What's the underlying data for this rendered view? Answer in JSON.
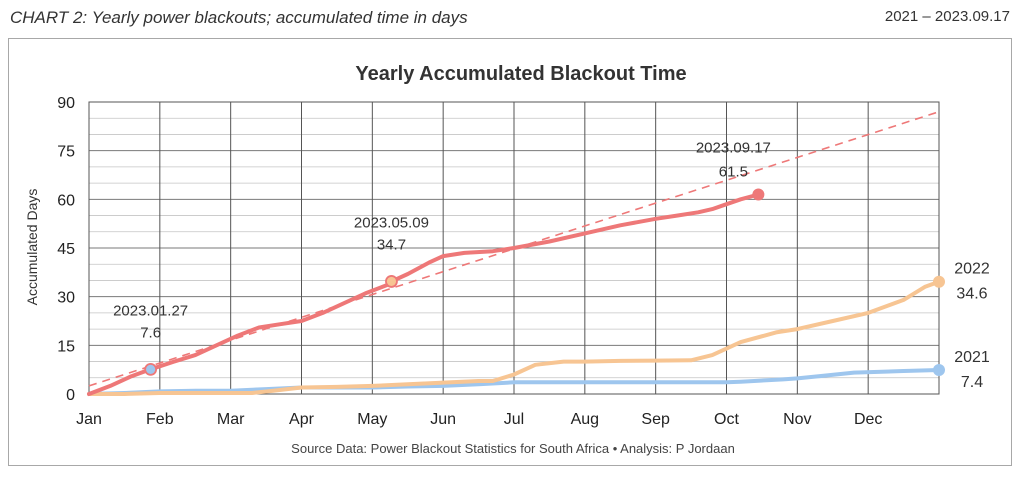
{
  "header": {
    "left": "CHART 2:  Yearly power blackouts; accumulated time in days",
    "right": "2021 – 2023.09.17"
  },
  "chart_data": {
    "type": "line",
    "title": "Yearly Accumulated Blackout Time",
    "xlabel": "",
    "ylabel": "Accumulated Days",
    "x_categories": [
      "Jan",
      "Feb",
      "Mar",
      "Apr",
      "May",
      "Jun",
      "Jul",
      "Aug",
      "Sep",
      "Oct",
      "Nov",
      "Dec"
    ],
    "x_unit": "month",
    "xlim": [
      0,
      12
    ],
    "ylim": [
      0,
      90
    ],
    "y_ticks": [
      0,
      15,
      30,
      45,
      60,
      75,
      90
    ],
    "grid": true,
    "source": "Source Data: Power Blackout Statistics for South Africa  •  Analysis: P Jordaan",
    "series": [
      {
        "name": "2021",
        "color": "#9ec6ee",
        "x": [
          0,
          0.5,
          1.0,
          1.5,
          2.0,
          2.5,
          3.0,
          3.5,
          4.0,
          4.5,
          5.0,
          5.5,
          6.0,
          6.5,
          7.0,
          7.5,
          8.0,
          8.5,
          9.0,
          9.2,
          9.8,
          10.0,
          10.3,
          10.8,
          11.5,
          12.0
        ],
        "y": [
          0,
          0.3,
          0.8,
          1.0,
          1.0,
          1.5,
          2.0,
          2.0,
          2.0,
          2.3,
          2.5,
          3.0,
          3.6,
          3.6,
          3.6,
          3.6,
          3.6,
          3.6,
          3.6,
          3.8,
          4.5,
          4.8,
          5.5,
          6.6,
          7.1,
          7.4
        ]
      },
      {
        "name": "2022",
        "color": "#f7c593",
        "x": [
          0,
          0.5,
          1.0,
          1.5,
          2.0,
          2.3,
          2.6,
          3.0,
          3.5,
          4.0,
          4.5,
          5.0,
          5.5,
          5.7,
          6.0,
          6.3,
          6.7,
          7.0,
          7.5,
          8.0,
          8.5,
          8.8,
          9.2,
          9.7,
          10.0,
          10.5,
          11.0,
          11.5,
          11.8,
          12.0
        ],
        "y": [
          0,
          0,
          0.3,
          0.3,
          0.3,
          0.3,
          1.0,
          2.0,
          2.2,
          2.5,
          3.0,
          3.5,
          4.0,
          4.0,
          6.0,
          9.0,
          10.0,
          10.0,
          10.2,
          10.3,
          10.4,
          12.0,
          16.0,
          19.0,
          20.0,
          22.5,
          25.0,
          29.0,
          33.0,
          34.6
        ]
      },
      {
        "name": "2023",
        "color": "#ee7878",
        "x": [
          0,
          0.3,
          0.6,
          0.87,
          1.2,
          1.5,
          1.8,
          2.1,
          2.4,
          2.7,
          3.0,
          3.3,
          3.6,
          3.9,
          4.2,
          4.27,
          4.5,
          4.8,
          5.0,
          5.3,
          5.7,
          6.0,
          6.5,
          7.0,
          7.5,
          8.0,
          8.3,
          8.6,
          8.8,
          9.0,
          9.2,
          9.45
        ],
        "y": [
          0,
          2.5,
          5.5,
          7.6,
          10.0,
          12.0,
          15.0,
          18.0,
          20.5,
          21.5,
          22.5,
          25.0,
          28.0,
          31.0,
          33.5,
          34.7,
          37.0,
          40.5,
          42.5,
          43.5,
          44.0,
          45.0,
          47.0,
          49.5,
          52.0,
          54.0,
          55.0,
          56.0,
          57.0,
          58.5,
          60.0,
          61.5
        ]
      }
    ],
    "trendline": {
      "series": "2023",
      "color": "#ee7878",
      "style": "dashed",
      "x": [
        0,
        12
      ],
      "y": [
        2.5,
        87.0
      ]
    },
    "annotations": [
      {
        "date": "2023.01.27",
        "value": "7.6",
        "x": 0.87,
        "y": 7.6,
        "color": "#9ec6ee"
      },
      {
        "date": "2023.05.09",
        "value": "34.7",
        "x": 4.27,
        "y": 34.7,
        "color": "#f7c593"
      },
      {
        "date": "2023.09.17",
        "value": "61.5",
        "x": 9.45,
        "y": 61.5,
        "color": "#ee7878"
      }
    ],
    "end_labels": [
      {
        "year": "2022",
        "value": "34.6",
        "x": 12.0,
        "y": 34.6,
        "color": "#f7c593"
      },
      {
        "year": "2021",
        "value": "7.4",
        "x": 12.0,
        "y": 7.4,
        "color": "#9ec6ee"
      }
    ]
  }
}
